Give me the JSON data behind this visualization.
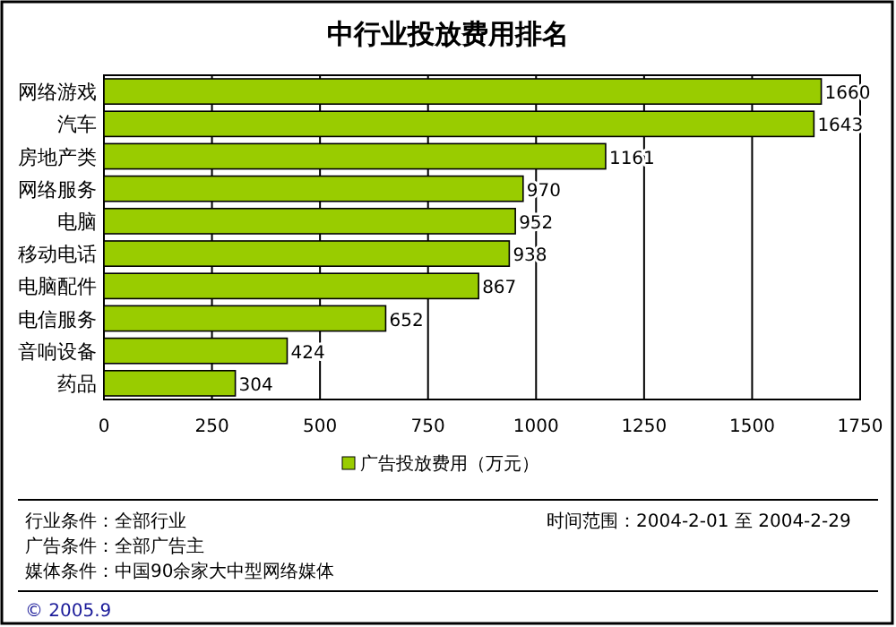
{
  "chart_data": {
    "type": "bar",
    "orientation": "horizontal",
    "title": "中行业投放费用排名",
    "categories": [
      "网络游戏",
      "汽车",
      "房地产类",
      "网络服务",
      "电脑",
      "移动电话",
      "电脑配件",
      "电信服务",
      "音响设备",
      "药品"
    ],
    "series": [
      {
        "name": "广告投放费用（万元）",
        "color": "#99cc00",
        "values": [
          1660,
          1643,
          1161,
          970,
          952,
          938,
          867,
          652,
          424,
          304
        ]
      }
    ],
    "xlim": [
      0,
      1750
    ],
    "xticks": [
      0,
      250,
      500,
      750,
      1000,
      1250,
      1500,
      1750
    ],
    "grid": "x",
    "legend": "bottom",
    "data_labels": true,
    "annotations": [
      "行业条件：全部行业",
      "广告条件：全部广告主",
      "媒体条件：中国90余家大中型网络媒体",
      "时间范围：2004-2-01 至 2004-2-29",
      "© 2005.9"
    ]
  }
}
